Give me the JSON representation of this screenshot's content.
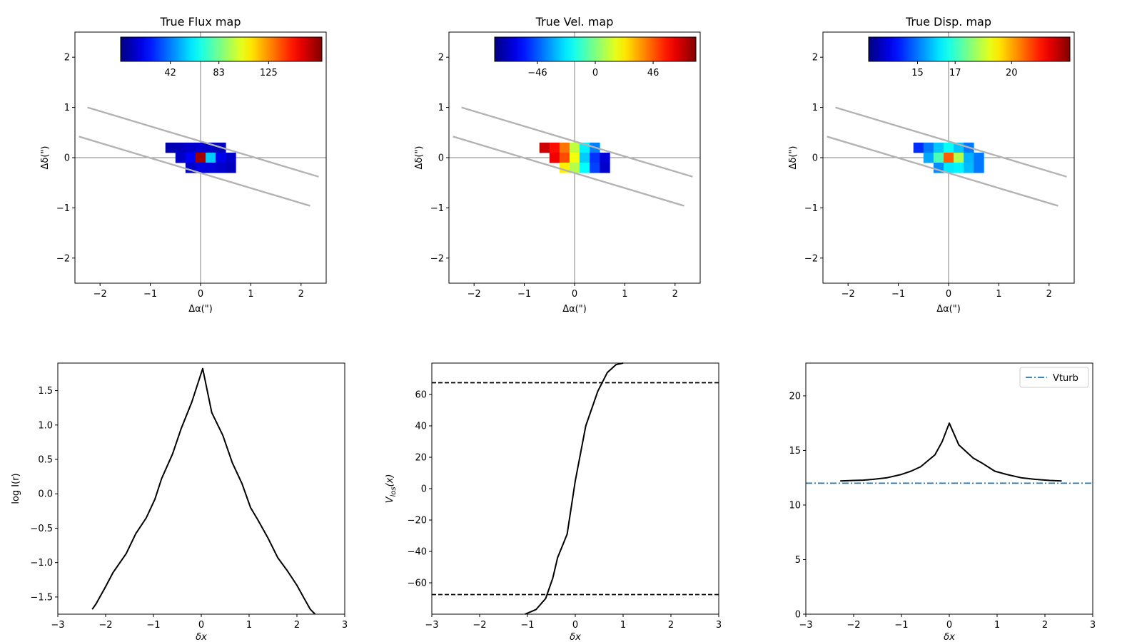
{
  "chart_data": [
    {
      "type": "heatmap",
      "title": "True Flux map",
      "xlabel": "Δα(\")",
      "ylabel": "Δδ(\")",
      "xlim": [
        -2.5,
        2.5
      ],
      "ylim": [
        -2.5,
        2.5
      ],
      "xticks": [
        -2,
        -1,
        0,
        1,
        2
      ],
      "yticks": [
        -2,
        -1,
        0,
        1,
        2
      ],
      "colorbar": {
        "colormap": "jet",
        "ticks": [
          {
            "value": 42,
            "label": "42"
          },
          {
            "value": 83,
            "label": "83"
          },
          {
            "value": 125,
            "label": "125"
          }
        ],
        "range": [
          0,
          170
        ]
      },
      "slit_lines": [
        [
          [
            -2.25,
            1.0
          ],
          [
            2.35,
            -0.38
          ]
        ],
        [
          [
            -2.42,
            0.42
          ],
          [
            2.18,
            -0.96
          ]
        ]
      ],
      "pixels": [
        {
          "x": -0.6,
          "y": 0.2,
          "value": 8
        },
        {
          "x": -0.4,
          "y": 0.2,
          "value": 10
        },
        {
          "x": -0.2,
          "y": 0.2,
          "value": 12
        },
        {
          "x": 0.0,
          "y": 0.2,
          "value": 14
        },
        {
          "x": 0.2,
          "y": 0.2,
          "value": 12
        },
        {
          "x": 0.4,
          "y": 0.2,
          "value": 10
        },
        {
          "x": -0.4,
          "y": 0.0,
          "value": 12
        },
        {
          "x": -0.2,
          "y": 0.0,
          "value": 20
        },
        {
          "x": 0.0,
          "y": 0.0,
          "value": 165
        },
        {
          "x": 0.2,
          "y": 0.0,
          "value": 55
        },
        {
          "x": 0.4,
          "y": 0.0,
          "value": 18
        },
        {
          "x": 0.6,
          "y": 0.0,
          "value": 12
        },
        {
          "x": -0.2,
          "y": -0.2,
          "value": 12
        },
        {
          "x": 0.0,
          "y": -0.2,
          "value": 16
        },
        {
          "x": 0.2,
          "y": -0.2,
          "value": 15
        },
        {
          "x": 0.4,
          "y": -0.2,
          "value": 13
        },
        {
          "x": 0.6,
          "y": -0.2,
          "value": 10
        }
      ]
    },
    {
      "type": "heatmap",
      "title": "True Vel. map",
      "xlabel": "Δα(\")",
      "ylabel": "Δδ(\")",
      "xlim": [
        -2.5,
        2.5
      ],
      "ylim": [
        -2.5,
        2.5
      ],
      "xticks": [
        -2,
        -1,
        0,
        1,
        2
      ],
      "yticks": [
        -2,
        -1,
        0,
        1,
        2
      ],
      "colorbar": {
        "colormap": "jet",
        "ticks": [
          {
            "value": -46,
            "label": "−46"
          },
          {
            "value": 0,
            "label": "0"
          },
          {
            "value": 46,
            "label": "46"
          }
        ],
        "range": [
          -80,
          80
        ]
      },
      "slit_lines": [
        [
          [
            -2.25,
            1.0
          ],
          [
            2.35,
            -0.38
          ]
        ],
        [
          [
            -2.42,
            0.42
          ],
          [
            2.18,
            -0.96
          ]
        ]
      ],
      "pixels": [
        {
          "x": -0.6,
          "y": 0.2,
          "value": 68
        },
        {
          "x": -0.4,
          "y": 0.2,
          "value": 58
        },
        {
          "x": -0.2,
          "y": 0.2,
          "value": 42
        },
        {
          "x": 0.0,
          "y": 0.2,
          "value": 10
        },
        {
          "x": 0.2,
          "y": 0.2,
          "value": -22
        },
        {
          "x": 0.4,
          "y": 0.2,
          "value": -40
        },
        {
          "x": -0.4,
          "y": 0.0,
          "value": 62
        },
        {
          "x": -0.2,
          "y": 0.0,
          "value": 48
        },
        {
          "x": 0.0,
          "y": 0.0,
          "value": 18
        },
        {
          "x": 0.2,
          "y": 0.0,
          "value": -28
        },
        {
          "x": 0.4,
          "y": 0.0,
          "value": -52
        },
        {
          "x": 0.6,
          "y": 0.0,
          "value": -66
        },
        {
          "x": -0.2,
          "y": -0.2,
          "value": 22
        },
        {
          "x": 0.0,
          "y": -0.2,
          "value": 8
        },
        {
          "x": 0.2,
          "y": -0.2,
          "value": -20
        },
        {
          "x": 0.4,
          "y": -0.2,
          "value": -50
        },
        {
          "x": 0.6,
          "y": -0.2,
          "value": -68
        }
      ]
    },
    {
      "type": "heatmap",
      "title": "True Disp. map",
      "xlabel": "Δα(\")",
      "ylabel": "Δδ(\")",
      "xlim": [
        -2.5,
        2.5
      ],
      "ylim": [
        -2.5,
        2.5
      ],
      "xticks": [
        -2,
        -1,
        0,
        1,
        2
      ],
      "yticks": [
        -2,
        -1,
        0,
        1,
        2
      ],
      "colorbar": {
        "colormap": "jet",
        "ticks": [
          {
            "value": 15,
            "label": "15"
          },
          {
            "value": 17,
            "label": "17"
          },
          {
            "value": 20,
            "label": "20"
          }
        ],
        "range": [
          12.4,
          23.1
        ]
      },
      "slit_lines": [
        [
          [
            -2.25,
            1.0
          ],
          [
            2.35,
            -0.38
          ]
        ],
        [
          [
            -2.42,
            0.42
          ],
          [
            2.18,
            -0.96
          ]
        ]
      ],
      "pixels": [
        {
          "x": -0.6,
          "y": 0.2,
          "value": 14.2
        },
        {
          "x": -0.4,
          "y": 0.2,
          "value": 15.0
        },
        {
          "x": -0.2,
          "y": 0.2,
          "value": 15.8
        },
        {
          "x": 0.0,
          "y": 0.2,
          "value": 16.5
        },
        {
          "x": 0.2,
          "y": 0.2,
          "value": 15.8
        },
        {
          "x": 0.4,
          "y": 0.2,
          "value": 15.0
        },
        {
          "x": -0.4,
          "y": 0.0,
          "value": 15.5
        },
        {
          "x": -0.2,
          "y": 0.0,
          "value": 17.2
        },
        {
          "x": 0.0,
          "y": 0.0,
          "value": 20.8
        },
        {
          "x": 0.2,
          "y": 0.0,
          "value": 18.3
        },
        {
          "x": 0.4,
          "y": 0.0,
          "value": 15.6
        },
        {
          "x": 0.6,
          "y": 0.0,
          "value": 15.0
        },
        {
          "x": -0.2,
          "y": -0.2,
          "value": 15.2
        },
        {
          "x": 0.0,
          "y": -0.2,
          "value": 16.2
        },
        {
          "x": 0.2,
          "y": -0.2,
          "value": 16.3
        },
        {
          "x": 0.4,
          "y": -0.2,
          "value": 15.7
        },
        {
          "x": 0.6,
          "y": -0.2,
          "value": 15.0
        }
      ]
    },
    {
      "type": "line",
      "title": "",
      "xlabel": "δx",
      "ylabel": "log I(r)",
      "xlim": [
        -3,
        3
      ],
      "ylim": [
        -1.75,
        1.9
      ],
      "xticks": [
        -3,
        -2,
        -1,
        0,
        1,
        2,
        3
      ],
      "yticks": [
        {
          "value": -1.5,
          "label": "−1.5"
        },
        {
          "value": -1.0,
          "label": "−1.0"
        },
        {
          "value": -0.5,
          "label": "−0.5"
        },
        {
          "value": 0.0,
          "label": "0.0"
        },
        {
          "value": 0.5,
          "label": "0.5"
        },
        {
          "value": 1.0,
          "label": "1.0"
        },
        {
          "value": 1.5,
          "label": "1.5"
        }
      ],
      "series": [
        {
          "color": "#000000",
          "style": "solid",
          "x": [
            -2.28,
            -2.2,
            -2.0,
            -1.85,
            -1.57,
            -1.37,
            -1.15,
            -0.97,
            -0.83,
            -0.6,
            -0.42,
            -0.2,
            0.03,
            0.22,
            0.45,
            0.65,
            0.85,
            1.03,
            1.2,
            1.4,
            1.6,
            1.8,
            2.0,
            2.15,
            2.28,
            2.38
          ],
          "y": [
            -1.68,
            -1.6,
            -1.35,
            -1.15,
            -0.87,
            -0.58,
            -0.35,
            -0.08,
            0.22,
            0.58,
            0.95,
            1.33,
            1.82,
            1.18,
            0.85,
            0.45,
            0.15,
            -0.2,
            -0.4,
            -0.65,
            -0.93,
            -1.12,
            -1.33,
            -1.52,
            -1.68,
            -1.75
          ]
        }
      ]
    },
    {
      "type": "line",
      "title": "",
      "xlabel": "δx",
      "ylabel": "V_los(x)",
      "xlim": [
        -3,
        3
      ],
      "ylim": [
        -80,
        80
      ],
      "xticks": [
        -3,
        -2,
        -1,
        0,
        1,
        2,
        3
      ],
      "yticks": [
        {
          "value": -60,
          "label": "−60"
        },
        {
          "value": -40,
          "label": "−40"
        },
        {
          "value": -20,
          "label": "−20"
        },
        {
          "value": 0,
          "label": "0"
        },
        {
          "value": 20,
          "label": "20"
        },
        {
          "value": 40,
          "label": "40"
        },
        {
          "value": 60,
          "label": "60"
        }
      ],
      "hlines": [
        {
          "y": 67.5,
          "style": "dashed",
          "color": "#000000"
        },
        {
          "y": -67.5,
          "style": "dashed",
          "color": "#000000"
        }
      ],
      "series": [
        {
          "color": "#000000",
          "style": "solid",
          "x": [
            -1.05,
            -0.82,
            -0.62,
            -0.47,
            -0.37,
            -0.17,
            0.0,
            0.22,
            0.47,
            0.67,
            0.85,
            1.0
          ],
          "y": [
            -80,
            -77,
            -70,
            -57,
            -44,
            -29,
            5,
            40,
            62,
            74,
            79,
            80
          ]
        }
      ]
    },
    {
      "type": "line",
      "title": "",
      "xlabel": "δx",
      "ylabel": "",
      "xlim": [
        -3,
        3
      ],
      "ylim": [
        0,
        23
      ],
      "xticks": [
        -3,
        -2,
        -1,
        0,
        1,
        2,
        3
      ],
      "yticks": [
        {
          "value": 0,
          "label": "0"
        },
        {
          "value": 5,
          "label": "5"
        },
        {
          "value": 10,
          "label": "10"
        },
        {
          "value": 15,
          "label": "15"
        },
        {
          "value": 20,
          "label": "20"
        }
      ],
      "legend": {
        "position": "top-right",
        "entries": [
          {
            "name": "Vturb",
            "style": "dashdot",
            "color": "#1f77b4"
          }
        ]
      },
      "hlines": [
        {
          "y": 12.0,
          "style": "dashdot",
          "color": "#1f77b4",
          "name": "Vturb"
        }
      ],
      "series": [
        {
          "color": "#000000",
          "style": "solid",
          "x": [
            -2.28,
            -2.0,
            -1.8,
            -1.6,
            -1.3,
            -1.0,
            -0.8,
            -0.6,
            -0.3,
            -0.15,
            0.0,
            0.2,
            0.5,
            0.7,
            0.95,
            1.2,
            1.5,
            1.8,
            2.1,
            2.35
          ],
          "y": [
            12.2,
            12.25,
            12.28,
            12.35,
            12.5,
            12.8,
            13.1,
            13.5,
            14.6,
            15.8,
            17.5,
            15.5,
            14.3,
            13.8,
            13.1,
            12.8,
            12.5,
            12.35,
            12.25,
            12.2
          ]
        }
      ]
    }
  ]
}
